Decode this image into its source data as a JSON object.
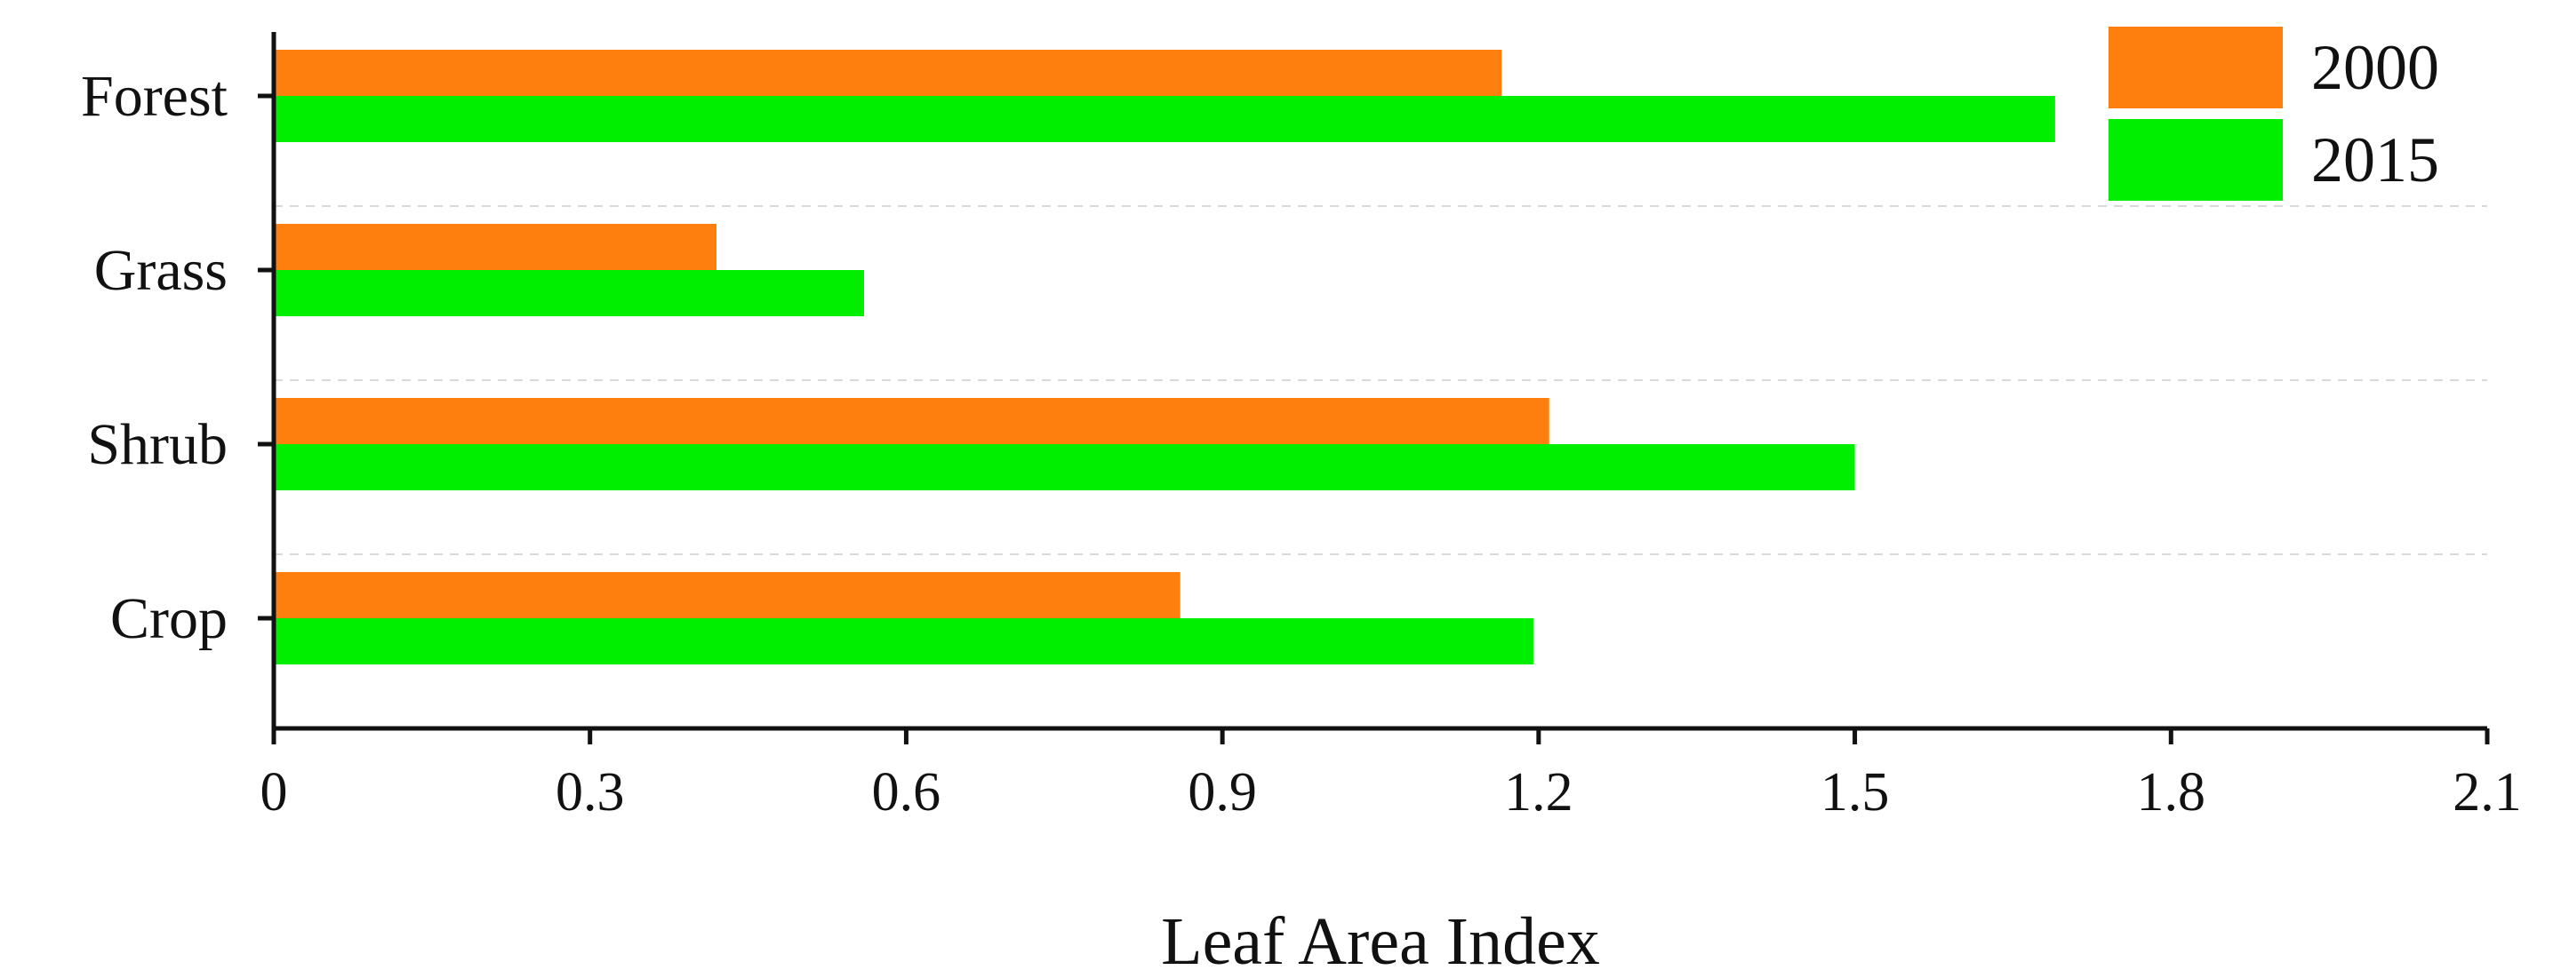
{
  "chart_data": {
    "type": "bar",
    "orientation": "horizontal",
    "categories": [
      "Forest",
      "Grass",
      "Shrub",
      "Crop"
    ],
    "series": [
      {
        "name": "2000",
        "color": "#ff7f0e",
        "values": [
          1.165,
          0.42,
          1.21,
          0.86
        ]
      },
      {
        "name": "2015",
        "color": "#00ee00",
        "values": [
          1.69,
          0.56,
          1.5,
          1.195
        ]
      }
    ],
    "xlabel": "Leaf Area Index",
    "ylabel": "",
    "title": "",
    "xlim": [
      0,
      2.1
    ],
    "xticks": [
      "0",
      "0.3",
      "0.6",
      "0.9",
      "1.2",
      "1.5",
      "1.8",
      "2.1"
    ],
    "grid": false,
    "legend_position": "top-right"
  }
}
